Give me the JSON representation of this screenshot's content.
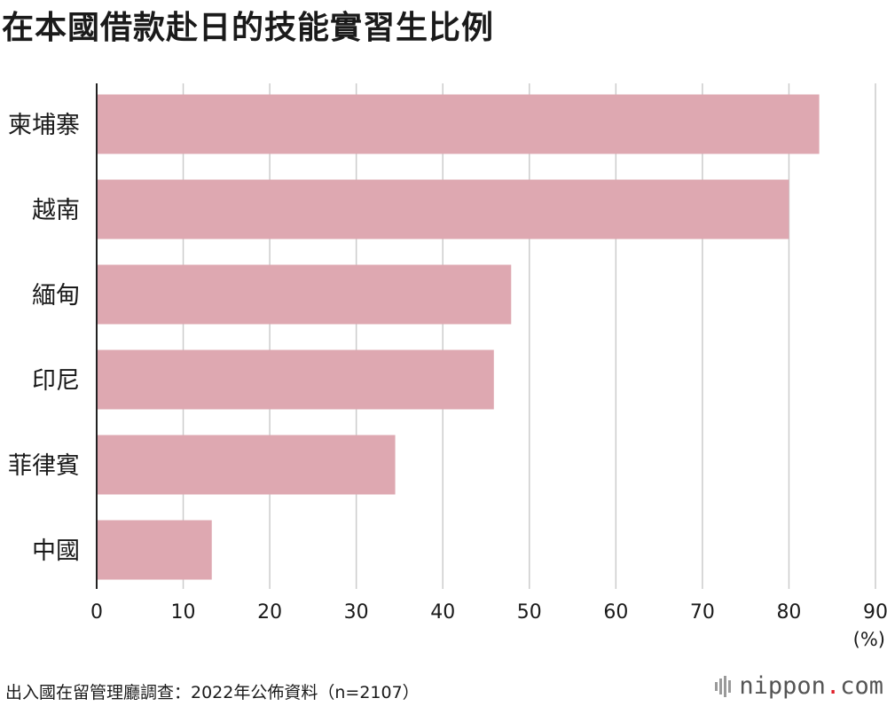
{
  "title": "在本國借款赴日的技能實習生比例",
  "source": "出入國在留管理廳調查：2022年公佈資料（n=2107）",
  "brand": {
    "name_part1": "nippon",
    "dot": ".",
    "name_part2": "com",
    "dot_color": "#e0202a"
  },
  "chart_data": {
    "type": "bar",
    "orientation": "horizontal",
    "categories": [
      "柬埔寨",
      "越南",
      "緬甸",
      "印尼",
      "菲律賓",
      "中國"
    ],
    "values": [
      83.5,
      80.0,
      47.9,
      45.9,
      34.5,
      13.3
    ],
    "xlim": [
      0,
      90
    ],
    "ticks": [
      0,
      10,
      20,
      30,
      40,
      50,
      60,
      70,
      80,
      90
    ],
    "unit": "(%)",
    "grid": true,
    "bar_color": "#dea8b1",
    "grid_color": "#cccccc",
    "axis_color": "#222222"
  }
}
